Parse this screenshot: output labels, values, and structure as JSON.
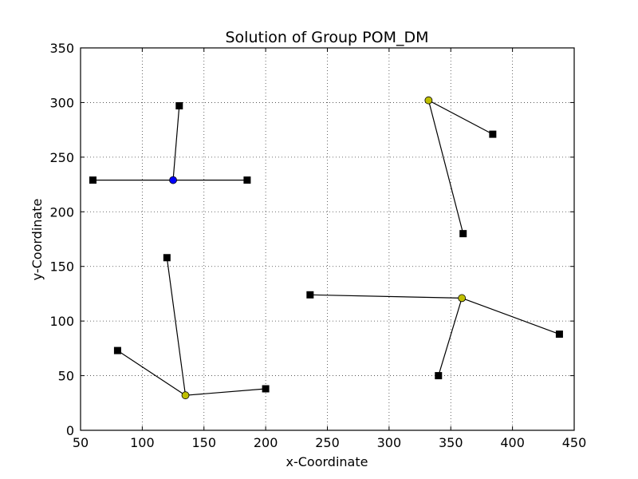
{
  "chart_data": {
    "type": "scatter",
    "title": "Solution of Group POM_DM",
    "xlabel": "x-Coordinate",
    "ylabel": "y-Coordinate",
    "xlim": [
      50,
      450
    ],
    "ylim": [
      0,
      350
    ],
    "xticks": [
      "50",
      "100",
      "150",
      "200",
      "250",
      "300",
      "350",
      "400",
      "450"
    ],
    "yticks": [
      "0",
      "50",
      "100",
      "150",
      "200",
      "250",
      "300",
      "350"
    ],
    "grid": true,
    "facility_colors": {
      "blue": "#0000ff",
      "yellow": "#bfbf00"
    },
    "clusters": [
      {
        "facility": {
          "x": 125,
          "y": 229,
          "color": "blue"
        },
        "customers": [
          {
            "x": 60,
            "y": 229
          },
          {
            "x": 185,
            "y": 229
          },
          {
            "x": 130,
            "y": 297
          }
        ]
      },
      {
        "facility": {
          "x": 332,
          "y": 302,
          "color": "yellow"
        },
        "customers": [
          {
            "x": 384,
            "y": 271
          },
          {
            "x": 360,
            "y": 180
          }
        ]
      },
      {
        "facility": {
          "x": 135,
          "y": 32,
          "color": "yellow"
        },
        "customers": [
          {
            "x": 80,
            "y": 73
          },
          {
            "x": 120,
            "y": 158
          },
          {
            "x": 200,
            "y": 38
          }
        ]
      },
      {
        "facility": {
          "x": 359,
          "y": 121,
          "color": "yellow"
        },
        "customers": [
          {
            "x": 236,
            "y": 124
          },
          {
            "x": 340,
            "y": 50
          },
          {
            "x": 438,
            "y": 88
          }
        ]
      }
    ]
  }
}
